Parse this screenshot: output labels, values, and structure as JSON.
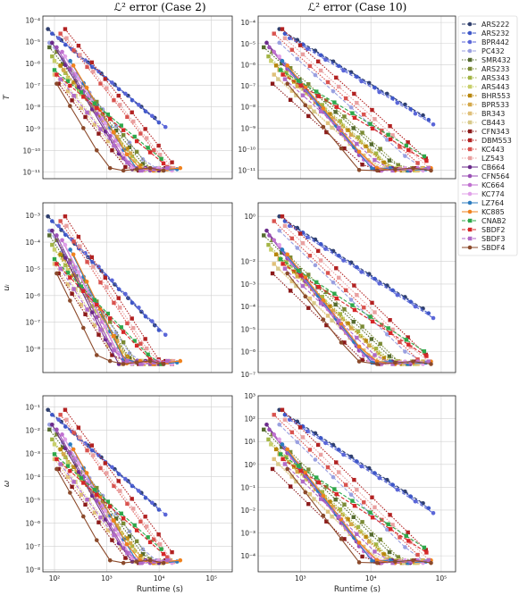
{
  "chart_data": {
    "type": "line",
    "columns": [
      {
        "title": "ℒ² error (Case 2)",
        "xlim": [
          60,
          250000
        ],
        "xticks": [
          {
            "v": 100,
            "t": "10²"
          },
          {
            "v": 1000,
            "t": "10³"
          },
          {
            "v": 10000,
            "t": "10⁴"
          },
          {
            "v": 100000,
            "t": "10⁵"
          }
        ]
      },
      {
        "title": "ℒ² error (Case 10)",
        "xlim": [
          250,
          160000
        ],
        "xticks": [
          {
            "v": 1000,
            "t": "10³"
          },
          {
            "v": 10000,
            "t": "10⁴"
          },
          {
            "v": 100000,
            "t": "10⁵"
          }
        ]
      }
    ],
    "rows": [
      {
        "ylabel": "T",
        "ylims": [
          [
            5e-12,
            0.00015
          ],
          [
            4e-12,
            0.0002
          ]
        ],
        "yticks": [
          [
            {
              "v": 1e-11,
              "t": "10⁻¹¹"
            },
            {
              "v": 1e-10,
              "t": "10⁻¹⁰"
            },
            {
              "v": 1e-09,
              "t": "10⁻⁹"
            },
            {
              "v": 1e-08,
              "t": "10⁻⁸"
            },
            {
              "v": 1e-07,
              "t": "10⁻⁷"
            },
            {
              "v": 1e-06,
              "t": "10⁻⁶"
            },
            {
              "v": 1e-05,
              "t": "10⁻⁵"
            },
            {
              "v": 0.0001,
              "t": "10⁻⁴"
            }
          ],
          [
            {
              "v": 1e-11,
              "t": "10⁻¹¹"
            },
            {
              "v": 1e-10,
              "t": "10⁻¹⁰"
            },
            {
              "v": 1e-09,
              "t": "10⁻⁹"
            },
            {
              "v": 1e-08,
              "t": "10⁻⁸"
            },
            {
              "v": 1e-07,
              "t": "10⁻⁷"
            },
            {
              "v": 1e-06,
              "t": "10⁻⁶"
            },
            {
              "v": 1e-05,
              "t": "10⁻⁵"
            },
            {
              "v": 0.0001,
              "t": "10⁻⁴"
            }
          ]
        ]
      },
      {
        "ylabel": "uᵢ",
        "ylims": [
          [
            1.3e-09,
            0.003
          ],
          [
            1.2e-07,
            4
          ]
        ],
        "yticks": [
          [
            {
              "v": 1e-08,
              "t": "10⁻⁸"
            },
            {
              "v": 1e-07,
              "t": "10⁻⁷"
            },
            {
              "v": 1e-06,
              "t": "10⁻⁶"
            },
            {
              "v": 1e-05,
              "t": "10⁻⁵"
            },
            {
              "v": 0.0001,
              "t": "10⁻⁴"
            },
            {
              "v": 0.001,
              "t": "10⁻³"
            }
          ],
          [
            {
              "v": 1e-07,
              "t": "10⁻⁷"
            },
            {
              "v": 1e-06,
              "t": "10⁻⁶"
            },
            {
              "v": 1e-05,
              "t": "10⁻⁵"
            },
            {
              "v": 0.0001,
              "t": "10⁻⁴"
            },
            {
              "v": 0.001,
              "t": "10⁻³"
            },
            {
              "v": 0.01,
              "t": "10⁻²"
            },
            {
              "v": 1,
              "t": "10⁰"
            }
          ]
        ]
      },
      {
        "ylabel": "ω",
        "ylims": [
          [
            8e-09,
            0.3
          ],
          [
            2e-05,
            1000
          ]
        ],
        "yticks": [
          [
            {
              "v": 1e-08,
              "t": "10⁻⁸"
            },
            {
              "v": 1e-07,
              "t": "10⁻⁷"
            },
            {
              "v": 1e-06,
              "t": "10⁻⁶"
            },
            {
              "v": 1e-05,
              "t": "10⁻⁵"
            },
            {
              "v": 0.0001,
              "t": "10⁻⁴"
            },
            {
              "v": 0.001,
              "t": "10⁻³"
            },
            {
              "v": 0.01,
              "t": "10⁻²"
            },
            {
              "v": 0.1,
              "t": "10⁻¹"
            }
          ],
          [
            {
              "v": 0.0001,
              "t": "10⁻⁴"
            },
            {
              "v": 0.001,
              "t": "10⁻³"
            },
            {
              "v": 0.01,
              "t": "10⁻²"
            },
            {
              "v": 0.1,
              "t": "10⁻¹"
            },
            {
              "v": 1,
              "t": "10⁰"
            },
            {
              "v": 10,
              "t": "10¹"
            },
            {
              "v": 100,
              "t": "10²"
            },
            {
              "v": 1000,
              "t": "10³"
            }
          ]
        ]
      }
    ],
    "xlabel": "Runtime (s)",
    "xscale": "log",
    "yscale": "log",
    "grid": true,
    "legend_position": "right",
    "series": [
      {
        "name": "ARS222",
        "color": "#2f3f6e",
        "dash": "4,2",
        "marker": "circle",
        "x0": [
          75,
          500
        ],
        "slope": [
          -2,
          -2
        ]
      },
      {
        "name": "ARS232",
        "color": "#3e57c8",
        "dash": "4,2",
        "marker": "circle",
        "x0": [
          90,
          600
        ],
        "slope": [
          -2,
          -2
        ]
      },
      {
        "name": "BPR442",
        "color": "#5a66d8",
        "dash": "4,2",
        "marker": "circle",
        "x0": [
          120,
          700
        ],
        "slope": [
          -2,
          -2
        ]
      },
      {
        "name": "PC432",
        "color": "#9aa0e0",
        "dash": "4,2",
        "marker": "circle",
        "x0": [
          80,
          500
        ],
        "slope": [
          -3,
          -3
        ]
      },
      {
        "name": "SMR432",
        "color": "#556b2f",
        "dash": "1.5,1.5",
        "marker": "square",
        "x0": [
          80,
          300
        ],
        "slope": [
          -3,
          -3
        ]
      },
      {
        "name": "ARS233",
        "color": "#7a8a34",
        "dash": "1.5,1.5",
        "marker": "square",
        "x0": [
          110,
          400
        ],
        "slope": [
          -3,
          -3
        ]
      },
      {
        "name": "ARS343",
        "color": "#a3b545",
        "dash": "1.5,1.5",
        "marker": "square",
        "x0": [
          90,
          350
        ],
        "slope": [
          -3,
          -3
        ]
      },
      {
        "name": "ARS443",
        "color": "#c8cf6a",
        "dash": "1.5,1.5",
        "marker": "square",
        "x0": [
          100,
          380
        ],
        "slope": [
          -3,
          -3
        ]
      },
      {
        "name": "BHR553",
        "color": "#b8860b",
        "dash": "1.5,1.5",
        "marker": "square",
        "x0": [
          130,
          450
        ],
        "slope": [
          -3,
          -3
        ]
      },
      {
        "name": "BPR533",
        "color": "#d4a84a",
        "dash": "1.5,1.5",
        "marker": "square",
        "x0": [
          150,
          500
        ],
        "slope": [
          -3,
          -3
        ]
      },
      {
        "name": "BR343",
        "color": "#e0c07a",
        "dash": "1.5,1.5",
        "marker": "square",
        "x0": [
          100,
          420
        ],
        "slope": [
          -3,
          -3
        ]
      },
      {
        "name": "CB443",
        "color": "#d8c98a",
        "dash": "1.5,1.5",
        "marker": "square",
        "x0": [
          140,
          480
        ],
        "slope": [
          -3,
          -3
        ]
      },
      {
        "name": "CFN343",
        "color": "#8b1a1a",
        "dash": "1.5,1.5",
        "marker": "square",
        "x0": [
          120,
          400
        ],
        "slope": [
          -3,
          -3
        ]
      },
      {
        "name": "DBM553",
        "color": "#b22222",
        "dash": "1.5,1.5",
        "marker": "square",
        "x0": [
          160,
          550
        ],
        "slope": [
          -3,
          -3
        ]
      },
      {
        "name": "KC443",
        "color": "#d9534f",
        "dash": "1.5,1.5",
        "marker": "square",
        "x0": [
          130,
          420
        ],
        "slope": [
          -3,
          -3
        ]
      },
      {
        "name": "LZ543",
        "color": "#e9a0a0",
        "dash": "1.5,1.5",
        "marker": "square",
        "x0": [
          170,
          600
        ],
        "slope": [
          -3,
          -3
        ]
      },
      {
        "name": "CB664",
        "color": "#6a2a8a",
        "dash": "",
        "marker": "circle",
        "x0": [
          90,
          330
        ],
        "slope": [
          -4,
          -4
        ]
      },
      {
        "name": "CFN564",
        "color": "#9a4fb5",
        "dash": "",
        "marker": "circle",
        "x0": [
          110,
          360
        ],
        "slope": [
          -4,
          -4
        ]
      },
      {
        "name": "KC664",
        "color": "#c070d0",
        "dash": "",
        "marker": "circle",
        "x0": [
          140,
          420
        ],
        "slope": [
          -4,
          -4
        ]
      },
      {
        "name": "KC774",
        "color": "#e0a0e8",
        "dash": "",
        "marker": "circle",
        "x0": [
          160,
          500
        ],
        "slope": [
          -4,
          -4
        ]
      },
      {
        "name": "LZ764",
        "color": "#2b7bbf",
        "dash": "",
        "marker": "circle",
        "x0": [
          200,
          550
        ],
        "slope": [
          -4,
          -4
        ]
      },
      {
        "name": "KC885",
        "color": "#f0821e",
        "dash": "",
        "marker": "circle",
        "x0": [
          230,
          650
        ],
        "slope": [
          -4,
          -4
        ]
      },
      {
        "name": "CNAB2",
        "color": "#2ea84a",
        "dash": "4,2",
        "marker": "square",
        "x0": [
          100,
          520
        ],
        "slope": [
          -2,
          -2
        ]
      },
      {
        "name": "SBDF2",
        "color": "#d62728",
        "dash": "4,2",
        "marker": "square",
        "x0": [
          110,
          560
        ],
        "slope": [
          -2,
          -2
        ]
      },
      {
        "name": "SBDF3",
        "color": "#b06ac8",
        "dash": "4,2",
        "marker": "square",
        "x0": [
          130,
          600
        ],
        "slope": [
          -3,
          -3
        ]
      },
      {
        "name": "SBDF4",
        "color": "#8b4a2b",
        "dash": "",
        "marker": "circle",
        "x0": [
          110,
          650
        ],
        "slope": [
          -4,
          -4
        ]
      }
    ]
  }
}
